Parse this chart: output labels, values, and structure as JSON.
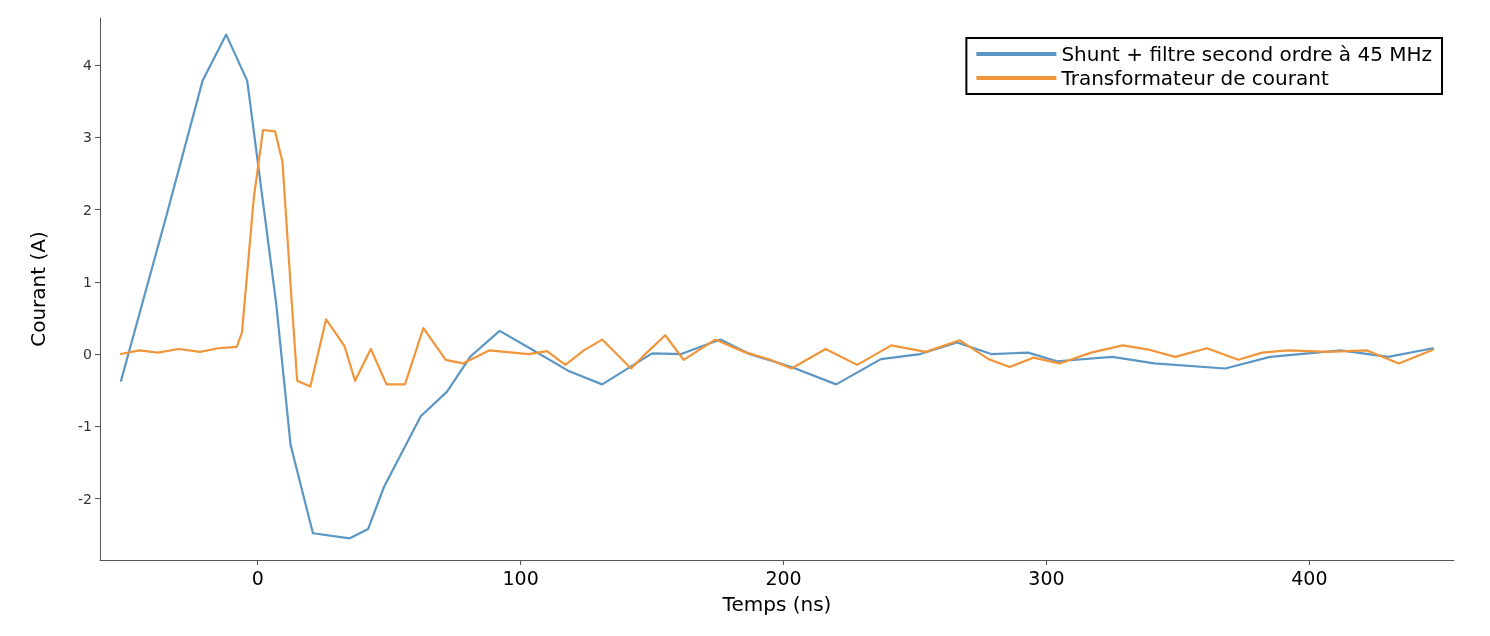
{
  "chart_data": {
    "type": "line",
    "xlabel": "Temps (ns)",
    "ylabel": "Courant (A)",
    "xlim": [
      -60,
      455
    ],
    "ylim": [
      -2.85,
      4.65
    ],
    "xticks": [
      0,
      100,
      200,
      300,
      400
    ],
    "yticks": [
      -2,
      -1,
      0,
      1,
      2,
      3,
      4
    ],
    "grid": false,
    "legend": "top right",
    "marker": "none",
    "line_style": "solid",
    "series": [
      {
        "name": "Shunt + filtre second ordre à 45 MHz",
        "color": "#5b96c4",
        "x": [
          -52,
          -35,
          -21,
          -12,
          -4,
          0,
          7,
          12.5,
          21,
          35,
          42,
          48,
          62,
          72,
          81,
          92,
          104,
          118,
          131,
          150,
          161,
          176,
          187,
          203,
          220,
          237,
          252,
          266,
          279,
          293,
          304,
          325,
          341,
          368,
          385,
          412,
          430,
          447
        ],
        "values": [
          -0.37,
          1.88,
          3.78,
          4.42,
          3.78,
          2.66,
          0.7,
          -1.26,
          -2.48,
          -2.55,
          -2.42,
          -1.84,
          -0.86,
          -0.52,
          -0.03,
          0.32,
          0.07,
          -0.23,
          -0.42,
          0.01,
          0,
          0.2,
          0,
          -0.18,
          -0.42,
          -0.07,
          0,
          0.16,
          0,
          0.02,
          -0.1,
          -0.04,
          -0.13,
          -0.2,
          -0.04,
          0.05,
          -0.04,
          0.08
        ]
      },
      {
        "name": "Transformateur de courant",
        "color": "#f0953a",
        "x": [
          -52,
          -45,
          -38,
          -30,
          -22,
          -15,
          -8,
          -6,
          -1.5,
          2,
          6.6,
          9.4,
          12.5,
          15,
          20,
          26,
          33,
          37,
          43,
          49,
          56,
          63,
          71.5,
          78,
          88,
          97,
          103,
          110,
          117,
          124,
          131,
          142,
          148,
          155,
          162,
          174,
          185,
          195,
          203,
          216,
          228,
          241,
          254,
          267,
          278,
          286,
          295,
          305,
          317,
          329,
          339,
          349,
          361,
          373,
          382,
          392,
          407,
          422,
          434,
          447
        ],
        "values": [
          0.0,
          0.05,
          0.02,
          0.07,
          0.03,
          0.08,
          0.1,
          0.3,
          2.16,
          3.1,
          3.08,
          2.66,
          0.95,
          -0.37,
          -0.45,
          0.48,
          0.11,
          -0.37,
          0.07,
          -0.42,
          -0.42,
          0.36,
          -0.08,
          -0.13,
          0.05,
          0.02,
          0,
          0.04,
          -0.15,
          0.05,
          0.2,
          -0.2,
          0.02,
          0.26,
          -0.08,
          0.2,
          0.03,
          -0.08,
          -0.2,
          0.07,
          -0.15,
          0.12,
          0.03,
          0.19,
          -0.07,
          -0.18,
          -0.05,
          -0.13,
          0.02,
          0.12,
          0.06,
          -0.04,
          0.08,
          -0.08,
          0.02,
          0.05,
          0.03,
          0.05,
          -0.13,
          0.06
        ]
      }
    ]
  }
}
